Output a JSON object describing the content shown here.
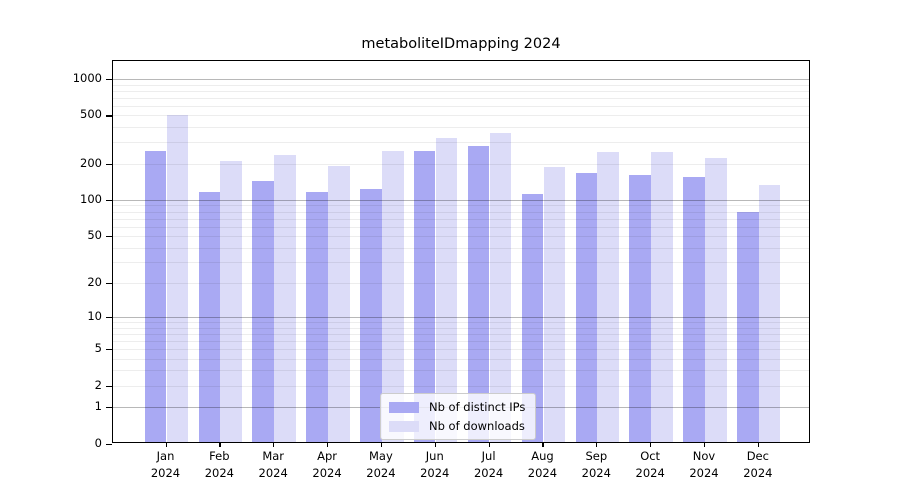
{
  "chart_data": {
    "type": "bar",
    "title": "metaboliteIDmapping 2024",
    "categories": [
      "Jan 2024",
      "Feb 2024",
      "Mar 2024",
      "Apr 2024",
      "May 2024",
      "Jun 2024",
      "Jul 2024",
      "Aug 2024",
      "Sep 2024",
      "Oct 2024",
      "Nov 2024",
      "Dec 2024"
    ],
    "series": [
      {
        "name": "Nb of distinct IPs",
        "color": "#a9a9f3",
        "values": [
          255,
          117,
          145,
          116,
          123,
          256,
          280,
          112,
          169,
          160,
          156,
          80
        ]
      },
      {
        "name": "Nb of downloads",
        "color": "#dcdcf8",
        "values": [
          505,
          212,
          235,
          192,
          255,
          327,
          355,
          187,
          250,
          250,
          222,
          132
        ]
      }
    ],
    "yscale": "log1p",
    "yticks": [
      0,
      1,
      2,
      5,
      10,
      20,
      50,
      100,
      200,
      500,
      1000
    ],
    "ylim": [
      0,
      1430
    ],
    "grid": "horizontal, gray major lines at 1/10/100/1000 with faint minor lines, drawn over bars",
    "legend_position": "inside lower-center"
  }
}
